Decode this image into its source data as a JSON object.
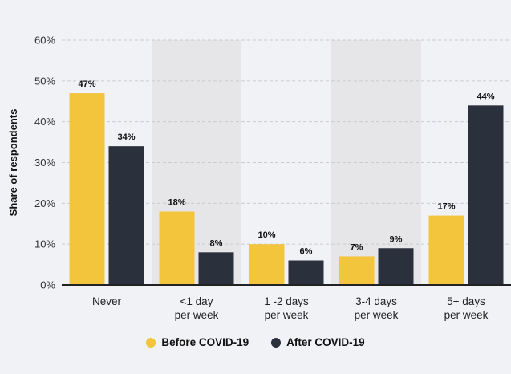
{
  "chart_data": {
    "type": "bar",
    "ylabel": "Share of respondents",
    "xlabel": "",
    "title": "",
    "ylim": [
      0,
      60
    ],
    "yticks": [
      0,
      10,
      20,
      30,
      40,
      50,
      60
    ],
    "ytick_labels": [
      "0%",
      "10%",
      "20%",
      "30%",
      "40%",
      "50%",
      "60%"
    ],
    "categories": [
      [
        "Never"
      ],
      [
        "<1 day",
        "per week"
      ],
      [
        "1 -2 days",
        "per week"
      ],
      [
        "3-4 days",
        "per week"
      ],
      [
        "5+ days",
        "per week"
      ]
    ],
    "series": [
      {
        "name": "Before COVID-19",
        "color": "#f2c53d",
        "values": [
          47,
          18,
          10,
          7,
          17
        ],
        "labels": [
          "47%",
          "18%",
          "10%",
          "7%",
          "17%"
        ]
      },
      {
        "name": "After COVID-19",
        "color": "#2a303c",
        "values": [
          34,
          8,
          6,
          9,
          44
        ],
        "labels": [
          "34%",
          "8%",
          "6%",
          "9%",
          "44%"
        ]
      }
    ],
    "grid": true,
    "legend": "bottom-center",
    "shaded_categories": [
      1,
      3
    ]
  }
}
